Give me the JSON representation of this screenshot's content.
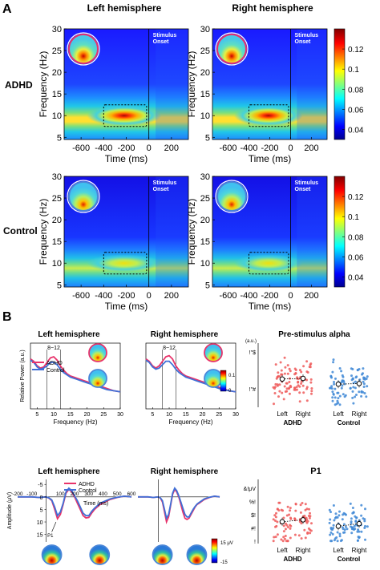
{
  "panel_a": {
    "label": "A",
    "col_titles": [
      "Left hemisphere",
      "Right hemisphere"
    ],
    "row_labels": [
      "ADHD",
      "Control"
    ],
    "xlabel": "Time (ms)",
    "ylabel": "Frequency (Hz)",
    "onset_label": [
      "Stimulus",
      "Onset"
    ]
  },
  "panel_b": {
    "label": "B",
    "alpha_band_label": "8~12",
    "legend": [
      "ADHD",
      "Control"
    ],
    "spectrum_titles": [
      "Left hemisphere",
      "Right hemisphere"
    ],
    "spectrum_ylabel": "Relative Power (a.u.)",
    "spectrum_xlabel": "Frequency (Hz)",
    "spectrum_colorbar_ticks": [
      "0.1",
      "0"
    ],
    "scatter_title_alpha": "Pre-stimulus alpha",
    "scatter_unit_alpha": "(a.u.)",
    "scatter_yticks_alpha": [
      "!\"$",
      "!\"#"
    ],
    "erp_titles": [
      "Left hemisphere",
      "Right hemisphere"
    ],
    "erp_ylabel": "Amplitude (μV)",
    "erp_xlabel": "Time (ms)",
    "erp_p1_label": "P1",
    "erp_colorbar_ticks": [
      "15 μV",
      "-15"
    ],
    "scatter_title_p1": "P1",
    "scatter_yticks_p1": [
      "&!μV",
      "%!",
      "$!",
      "#!",
      "!"
    ],
    "scatter_xticks": [
      "Left",
      "Right",
      "Left",
      "Right"
    ],
    "scatter_groups": [
      "ADHD",
      "Control"
    ]
  },
  "chart_data": [
    {
      "type": "heatmap",
      "id": "tf-adhd-left",
      "xlabel": "Time (ms)",
      "ylabel": "Frequency (Hz)",
      "xlim": [
        -750,
        350
      ],
      "ylim": [
        4.5,
        30
      ],
      "xticks": [
        -600,
        -400,
        -200,
        0,
        200
      ],
      "yticks": [
        5,
        10,
        15,
        20,
        25,
        30
      ],
      "alpha_peak_hz": 10,
      "annotation": "Stimulus Onset",
      "colorbar": {
        "min": 0.03,
        "max": 0.14,
        "ticks": [
          0.04,
          0.06,
          0.08,
          0.1,
          0.12
        ]
      }
    },
    {
      "type": "heatmap",
      "id": "tf-adhd-right",
      "xlabel": "Time (ms)",
      "ylabel": "Frequency (Hz)",
      "xlim": [
        -750,
        350
      ],
      "ylim": [
        4.5,
        30
      ],
      "xticks": [
        -600,
        -400,
        -200,
        0,
        200
      ],
      "yticks": [
        5,
        10,
        15,
        20,
        25,
        30
      ],
      "alpha_peak_hz": 10,
      "annotation": "Stimulus Onset",
      "colorbar": {
        "min": 0.03,
        "max": 0.14,
        "ticks": [
          0.04,
          0.06,
          0.08,
          0.1,
          0.12
        ]
      }
    },
    {
      "type": "heatmap",
      "id": "tf-control-left",
      "xlabel": "Time (ms)",
      "ylabel": "Frequency (Hz)",
      "xlim": [
        -750,
        350
      ],
      "ylim": [
        4.5,
        30
      ],
      "xticks": [
        -600,
        -400,
        -200,
        0,
        200
      ],
      "yticks": [
        5,
        10,
        15,
        20,
        25,
        30
      ],
      "alpha_peak_hz": 10,
      "annotation": "Stimulus Onset",
      "colorbar": {
        "min": 0.03,
        "max": 0.14,
        "ticks": [
          0.04,
          0.06,
          0.08,
          0.1,
          0.12
        ]
      }
    },
    {
      "type": "heatmap",
      "id": "tf-control-right",
      "xlabel": "Time (ms)",
      "ylabel": "Frequency (Hz)",
      "xlim": [
        -750,
        350
      ],
      "ylim": [
        4.5,
        30
      ],
      "xticks": [
        -600,
        -400,
        -200,
        0,
        200
      ],
      "yticks": [
        5,
        10,
        15,
        20,
        25,
        30
      ],
      "alpha_peak_hz": 10,
      "annotation": "Stimulus Onset",
      "colorbar": {
        "min": 0.03,
        "max": 0.14,
        "ticks": [
          0.04,
          0.06,
          0.08,
          0.1,
          0.12
        ]
      }
    },
    {
      "type": "line",
      "id": "spectrum-left",
      "title": "Left hemisphere",
      "xlabel": "Frequency (Hz)",
      "ylabel": "Relative Power (a.u.)",
      "xlim": [
        3,
        30
      ],
      "ylim": [
        0,
        0.058
      ],
      "xticks": [
        5,
        10,
        15,
        20,
        25,
        30
      ],
      "band": [
        8,
        12
      ],
      "x": [
        3,
        4,
        5,
        6,
        7,
        8,
        9,
        10,
        11,
        12,
        13,
        14,
        15,
        16,
        17,
        18,
        19,
        20,
        22,
        24,
        26,
        28,
        30
      ],
      "series": [
        {
          "name": "ADHD",
          "color": "#e8336b",
          "values": [
            0.044,
            0.042,
            0.038,
            0.036,
            0.037,
            0.041,
            0.045,
            0.046,
            0.043,
            0.038,
            0.034,
            0.031,
            0.029,
            0.028,
            0.027,
            0.026,
            0.025,
            0.024,
            0.022,
            0.02,
            0.018,
            0.016,
            0.015
          ]
        },
        {
          "name": "Control",
          "color": "#3f6fd6",
          "values": [
            0.043,
            0.041,
            0.037,
            0.035,
            0.036,
            0.038,
            0.041,
            0.041,
            0.039,
            0.035,
            0.032,
            0.03,
            0.028,
            0.027,
            0.026,
            0.025,
            0.024,
            0.023,
            0.021,
            0.019,
            0.017,
            0.016,
            0.015
          ]
        }
      ]
    },
    {
      "type": "line",
      "id": "spectrum-right",
      "title": "Right hemisphere",
      "xlabel": "Frequency (Hz)",
      "xlim": [
        3,
        30
      ],
      "ylim": [
        0,
        0.058
      ],
      "xticks": [
        5,
        10,
        15,
        20,
        25,
        30
      ],
      "band": [
        8,
        12
      ],
      "x": [
        3,
        4,
        5,
        6,
        7,
        8,
        9,
        10,
        11,
        12,
        13,
        14,
        15,
        16,
        17,
        18,
        19,
        20,
        22,
        24,
        26,
        28,
        30
      ],
      "series": [
        {
          "name": "ADHD",
          "color": "#e8336b",
          "values": [
            0.044,
            0.042,
            0.038,
            0.036,
            0.038,
            0.042,
            0.046,
            0.047,
            0.044,
            0.038,
            0.034,
            0.031,
            0.029,
            0.028,
            0.027,
            0.026,
            0.025,
            0.024,
            0.022,
            0.02,
            0.018,
            0.016,
            0.015
          ]
        },
        {
          "name": "Control",
          "color": "#3f6fd6",
          "values": [
            0.043,
            0.041,
            0.037,
            0.035,
            0.036,
            0.039,
            0.042,
            0.042,
            0.039,
            0.035,
            0.032,
            0.03,
            0.028,
            0.027,
            0.026,
            0.025,
            0.024,
            0.023,
            0.021,
            0.019,
            0.017,
            0.016,
            0.015
          ]
        }
      ]
    },
    {
      "type": "line",
      "id": "erp-left",
      "title": "Left hemisphere",
      "xlabel": "Time (ms)",
      "ylabel": "Amplitude (μV)",
      "xlim": [
        -200,
        600
      ],
      "ylim": [
        18,
        -7
      ],
      "xticks": [
        -200,
        -100,
        0,
        100,
        200,
        300,
        400,
        500,
        600
      ],
      "yticks": [
        -5,
        0,
        5,
        10,
        15
      ],
      "x": [
        -200,
        -150,
        -100,
        -50,
        0,
        20,
        40,
        60,
        80,
        100,
        120,
        140,
        160,
        180,
        200,
        220,
        240,
        260,
        280,
        300,
        320,
        340,
        360,
        380,
        400,
        450,
        500,
        550,
        600
      ],
      "series": [
        {
          "name": "ADHD",
          "color": "#e8336b",
          "values": [
            0,
            0,
            0,
            0.2,
            0,
            0.5,
            1.5,
            5,
            8.7,
            7,
            3,
            -1.5,
            -3,
            -2,
            0,
            2.5,
            5,
            7.5,
            8.4,
            8.2,
            6.5,
            5,
            4,
            3,
            2.5,
            1,
            0.2,
            -0.3,
            0
          ]
        },
        {
          "name": "Control",
          "color": "#3f6fd6",
          "values": [
            0,
            0,
            0,
            0.2,
            0,
            0.4,
            1.2,
            4,
            7.5,
            6,
            2.5,
            -2,
            -3.5,
            -2.5,
            -0.5,
            1.5,
            4,
            6.5,
            7.5,
            7.5,
            5.8,
            4.5,
            3.5,
            2.5,
            2,
            0.8,
            0.1,
            -0.3,
            0
          ]
        }
      ]
    },
    {
      "type": "line",
      "id": "erp-right",
      "title": "Right hemisphere",
      "xlim": [
        -200,
        600
      ],
      "ylim": [
        18,
        -7
      ],
      "x": [
        -200,
        -150,
        -100,
        -50,
        0,
        20,
        40,
        60,
        80,
        100,
        120,
        140,
        160,
        180,
        200,
        220,
        240,
        260,
        280,
        300,
        320,
        340,
        360,
        380,
        400,
        450,
        500,
        550,
        600
      ],
      "series": [
        {
          "name": "ADHD",
          "color": "#e8336b",
          "values": [
            0,
            0,
            0,
            0.2,
            0,
            0.5,
            2,
            6,
            10,
            8,
            3.5,
            -1,
            -3,
            -2,
            0,
            3,
            6,
            8.5,
            9,
            8.5,
            7,
            5.5,
            4,
            3,
            2.5,
            1,
            0.2,
            -0.3,
            0
          ]
        },
        {
          "name": "Control",
          "color": "#3f6fd6",
          "values": [
            0,
            0,
            0,
            0.2,
            0,
            0.4,
            1.5,
            5,
            8.5,
            7,
            3,
            -1.5,
            -3.5,
            -2.5,
            -0.5,
            2,
            4.5,
            7,
            8,
            8,
            6.5,
            5,
            3.8,
            2.8,
            2.2,
            0.8,
            0.1,
            -0.3,
            0
          ]
        }
      ]
    },
    {
      "type": "scatter",
      "id": "scatter-alpha",
      "title": "Pre-stimulus alpha",
      "categories": [
        "Left",
        "Right",
        "Left",
        "Right"
      ],
      "groups": [
        "ADHD",
        "Control"
      ],
      "ylim": [
        0,
        1
      ],
      "means": [
        0.44,
        0.45,
        0.36,
        0.37
      ],
      "series": [
        {
          "name": "ADHD",
          "color": "#ee5a5a"
        },
        {
          "name": "Control",
          "color": "#3f88d6"
        }
      ]
    },
    {
      "type": "scatter",
      "id": "scatter-p1",
      "title": "P1",
      "categories": [
        "Left",
        "Right",
        "Left",
        "Right"
      ],
      "groups": [
        "ADHD",
        "Control"
      ],
      "ylim": [
        0,
        1
      ],
      "means": [
        0.34,
        0.37,
        0.27,
        0.31
      ],
      "series": [
        {
          "name": "ADHD",
          "color": "#ee5a5a"
        },
        {
          "name": "Control",
          "color": "#3f88d6"
        }
      ]
    }
  ]
}
